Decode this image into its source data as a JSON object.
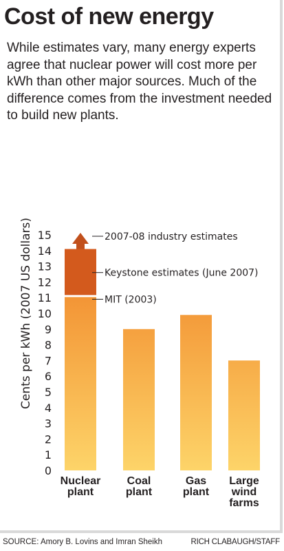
{
  "header": {
    "title": "Cost of new energy",
    "subtitle": "While estimates vary, many energy experts agree that nuclear power will cost more per kWh than other major sources. Much of the difference comes from the investment needed to build new plants."
  },
  "chart_data": {
    "type": "bar",
    "title": "Cost of new energy",
    "ylabel": "Cents per kWh (2007 US dollars)",
    "xlabel": "",
    "ylim": [
      0,
      15
    ],
    "yticks": [
      0,
      1,
      2,
      3,
      4,
      5,
      6,
      7,
      8,
      9,
      10,
      11,
      12,
      13,
      14,
      15
    ],
    "grid": false,
    "categories": [
      "Nuclear plant",
      "Coal plant",
      "Gas plant",
      "Large wind farms"
    ],
    "category_lines": [
      [
        "Nuclear",
        "plant"
      ],
      [
        "Coal",
        "plant"
      ],
      [
        "Gas",
        "plant"
      ],
      [
        "Large",
        "wind",
        "farms"
      ]
    ],
    "values": [
      14.1,
      9.0,
      9.9,
      7.0
    ],
    "nuclear_segments": [
      {
        "label": "MIT (2003)",
        "from": 0,
        "to": 11.1
      },
      {
        "label": "Keystone estimates (June 2007)",
        "from": 11.1,
        "to": 14.1
      },
      {
        "label": "2007-08 industry estimates",
        "from": 14.1,
        "to": 15.0,
        "marker": "upward arrow"
      }
    ],
    "colors": {
      "bar_top": "#ef7d22",
      "bar_bottom": "#fdd469",
      "keystone": "#d35a1d",
      "arrow": "#c1501c"
    }
  },
  "footer": {
    "source": "SOURCE: Amory B. Lovins and Imran Sheikh",
    "credit": "RICH CLABAUGH/STAFF"
  }
}
